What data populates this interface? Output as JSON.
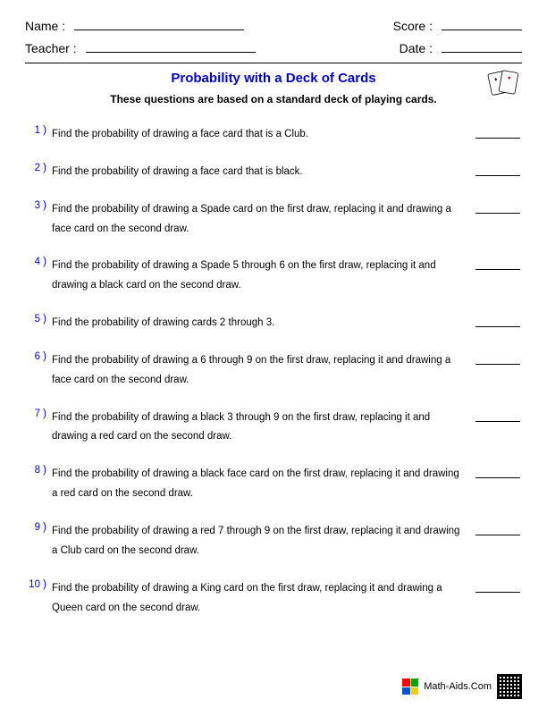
{
  "header": {
    "name_label": "Name :",
    "teacher_label": "Teacher :",
    "score_label": "Score :",
    "date_label": "Date :"
  },
  "title": "Probability with a Deck of Cards",
  "subtitle": "These questions are based on a standard deck of playing cards.",
  "questions": [
    {
      "num": "1 )",
      "text": "Find the probability of drawing a face card that is a Club."
    },
    {
      "num": "2 )",
      "text": "Find the probability of drawing a face card that is black."
    },
    {
      "num": "3 )",
      "text": "Find the probability of drawing a Spade card on the first draw, replacing it and drawing a face card on the second draw."
    },
    {
      "num": "4 )",
      "text": "Find the probability of drawing a Spade 5 through 6 on the first draw, replacing it and drawing a black card on the second draw."
    },
    {
      "num": "5 )",
      "text": "Find the probability of drawing cards 2 through 3."
    },
    {
      "num": "6 )",
      "text": "Find the probability of drawing a 6 through 9 on the first draw, replacing it and drawing a face card on the second draw."
    },
    {
      "num": "7 )",
      "text": "Find the probability of drawing a black 3 through 9 on the first draw, replacing it and drawing a red card on the second draw."
    },
    {
      "num": "8 )",
      "text": "Find the probability of drawing a black face card on the first draw, replacing it and drawing a red card on the second draw."
    },
    {
      "num": "9 )",
      "text": "Find the probability of drawing a red 7 through 9 on the first draw, replacing it and drawing a Club card on the second draw."
    },
    {
      "num": "10 )",
      "text": "Find the probability of drawing a King card on the first draw, replacing it and drawing a Queen card on the second draw."
    }
  ],
  "footer": {
    "site": "Math-Aids.Com",
    "logo_colors": [
      "#ff0000",
      "#00aa00",
      "#0055cc",
      "#ffcc00"
    ]
  }
}
